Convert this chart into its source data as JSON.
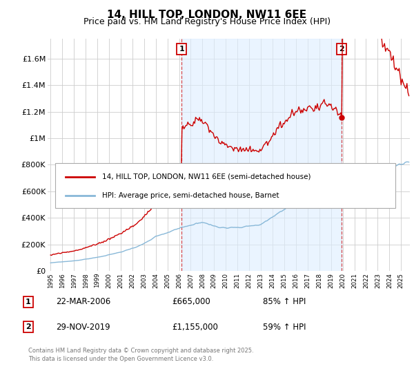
{
  "title": "14, HILL TOP, LONDON, NW11 6EE",
  "subtitle": "Price paid vs. HM Land Registry's House Price Index (HPI)",
  "legend_line1": "14, HILL TOP, LONDON, NW11 6EE (semi-detached house)",
  "legend_line2": "HPI: Average price, semi-detached house, Barnet",
  "ann1_label": "1",
  "ann1_date": "22-MAR-2006",
  "ann1_price": "£665,000",
  "ann1_hpi": "85% ↑ HPI",
  "ann1_x": 2006.22,
  "ann1_y": 665000,
  "ann2_label": "2",
  "ann2_date": "29-NOV-2019",
  "ann2_price": "£1,155,000",
  "ann2_hpi": "59% ↑ HPI",
  "ann2_x": 2019.92,
  "ann2_y": 1155000,
  "yticks": [
    0,
    200000,
    400000,
    600000,
    800000,
    1000000,
    1200000,
    1400000,
    1600000
  ],
  "ytick_labels": [
    "£0",
    "£200K",
    "£400K",
    "£600K",
    "£800K",
    "£1M",
    "£1.2M",
    "£1.4M",
    "£1.6M"
  ],
  "ylim": [
    0,
    1750000
  ],
  "xlim": [
    1994.75,
    2025.75
  ],
  "xtick_start": 1995,
  "xtick_end": 2025,
  "red_color": "#cc0000",
  "blue_color": "#88b8d8",
  "shade_color": "#ddeeff",
  "grid_color": "#cccccc",
  "bg_color": "#ffffff",
  "footer_line1": "Contains HM Land Registry data © Crown copyright and database right 2025.",
  "footer_line2": "This data is licensed under the Open Government Licence v3.0."
}
